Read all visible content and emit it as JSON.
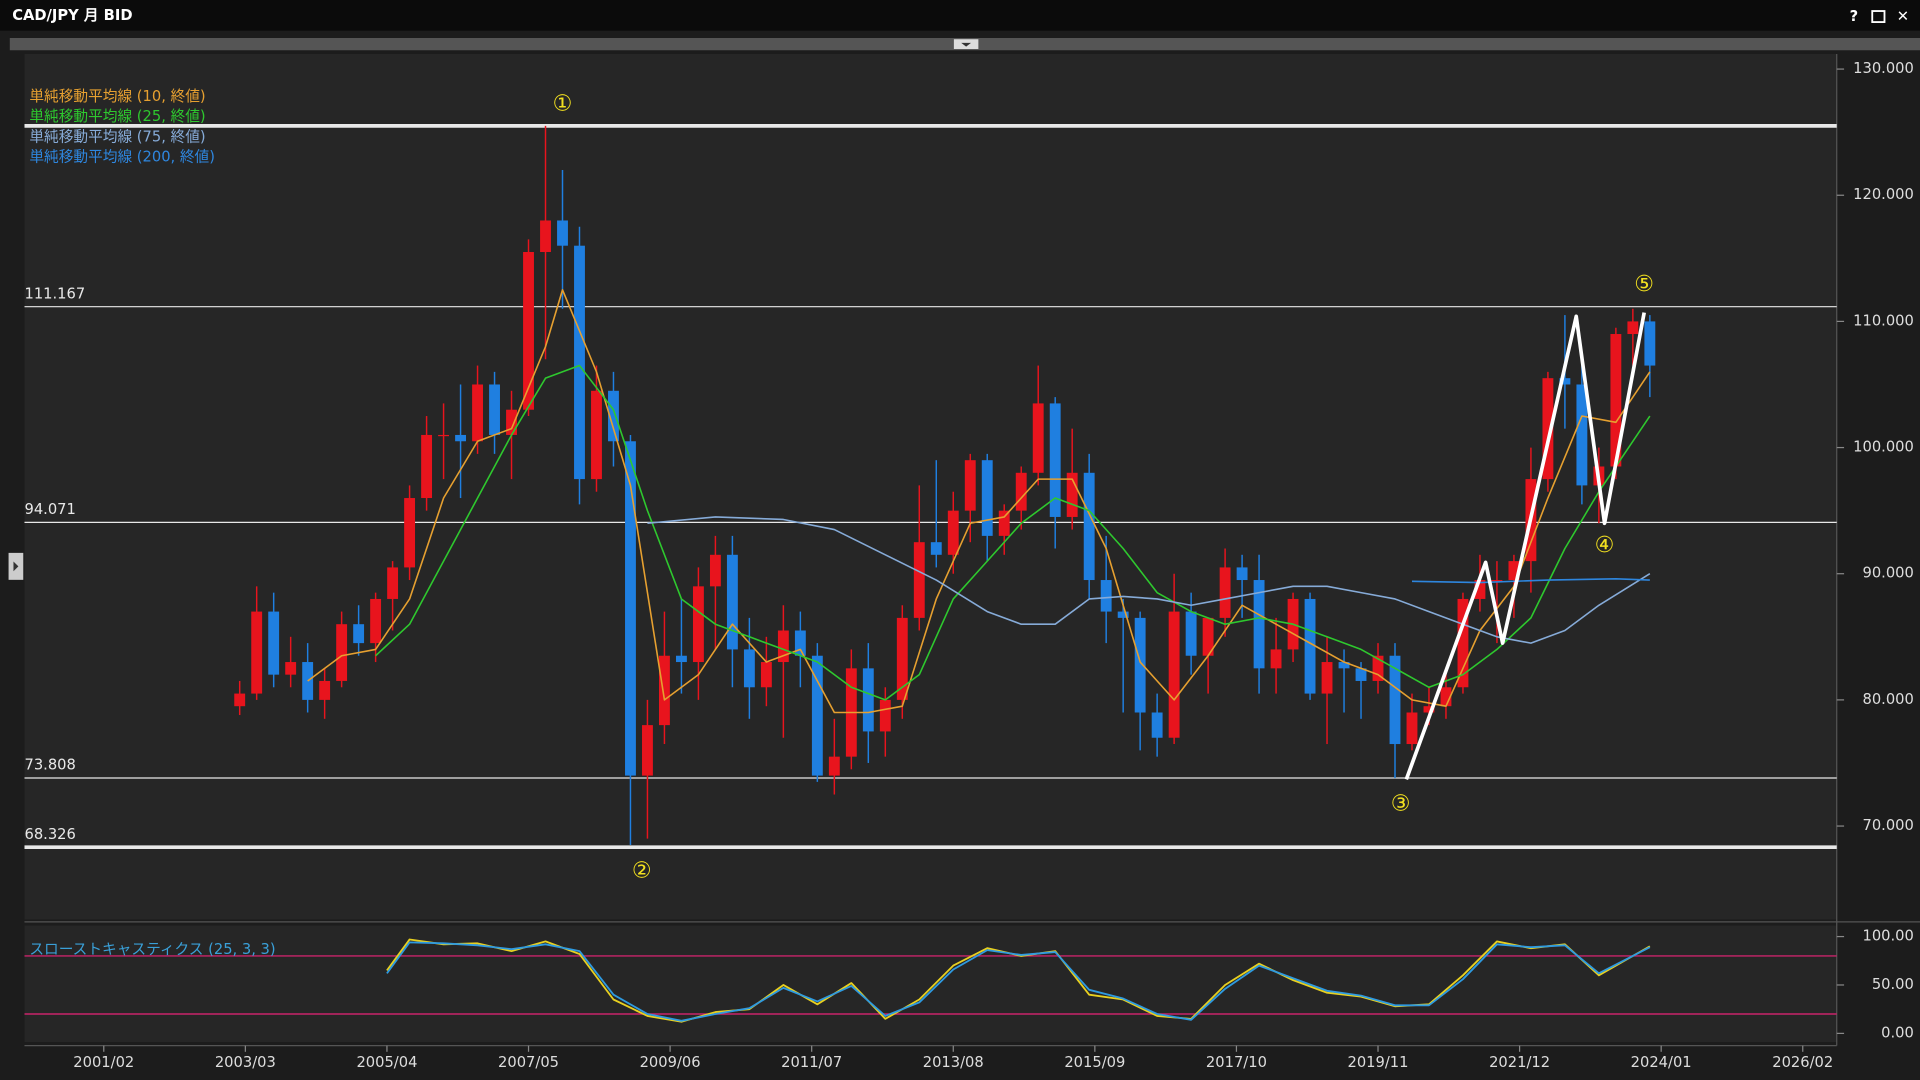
{
  "chart_data": [
    {
      "type": "candlestick",
      "title": "CAD/JPY 月 BID",
      "window_buttons": [
        "?",
        "✕"
      ],
      "up_color": "#e8141d",
      "down_color": "#1f7fe0",
      "x": [
        "2003/02",
        "2003/05",
        "2003/08",
        "2003/11",
        "2004/02",
        "2004/05",
        "2004/08",
        "2004/11",
        "2005/02",
        "2005/05",
        "2005/08",
        "2005/11",
        "2006/02",
        "2006/05",
        "2006/08",
        "2006/11",
        "2007/02",
        "2007/05",
        "2007/08",
        "2007/11",
        "2008/02",
        "2008/05",
        "2008/08",
        "2008/11",
        "2009/02",
        "2009/05",
        "2009/08",
        "2009/11",
        "2010/02",
        "2010/05",
        "2010/08",
        "2010/11",
        "2011/02",
        "2011/05",
        "2011/08",
        "2011/11",
        "2012/02",
        "2012/05",
        "2012/08",
        "2012/11",
        "2013/02",
        "2013/05",
        "2013/08",
        "2013/11",
        "2014/02",
        "2014/05",
        "2014/08",
        "2014/11",
        "2015/02",
        "2015/05",
        "2015/08",
        "2015/11",
        "2016/02",
        "2016/05",
        "2016/08",
        "2016/11",
        "2017/02",
        "2017/05",
        "2017/08",
        "2017/11",
        "2018/02",
        "2018/05",
        "2018/08",
        "2018/11",
        "2019/02",
        "2019/05",
        "2019/08",
        "2019/11",
        "2020/02",
        "2020/05",
        "2020/08",
        "2020/11",
        "2021/02",
        "2021/05",
        "2021/08",
        "2021/11",
        "2022/02",
        "2022/05",
        "2022/08",
        "2022/11",
        "2023/02",
        "2023/05",
        "2023/08",
        "2023/11"
      ],
      "open": [
        79.5,
        80.5,
        87.0,
        82.0,
        83.0,
        80.0,
        81.5,
        86.0,
        84.5,
        88.0,
        90.5,
        96.0,
        101.0,
        101.0,
        100.5,
        105.0,
        101.0,
        103.0,
        115.5,
        118.0,
        116.0,
        97.5,
        104.5,
        100.5,
        74.0,
        78.0,
        83.5,
        83.0,
        89.0,
        91.5,
        84.0,
        81.0,
        83.0,
        85.5,
        83.5,
        74.0,
        75.5,
        82.5,
        77.5,
        80.0,
        86.5,
        92.5,
        91.5,
        95.0,
        99.0,
        93.0,
        95.0,
        98.0,
        103.5,
        94.5,
        98.0,
        89.5,
        87.0,
        86.5,
        79.0,
        77.0,
        87.0,
        83.5,
        86.5,
        90.5,
        89.5,
        82.5,
        84.0,
        88.0,
        80.5,
        83.0,
        82.5,
        81.5,
        83.5,
        76.5,
        79.0,
        79.5,
        81.0,
        88.0,
        89.5,
        89.5,
        91.0,
        97.5,
        105.5,
        105.0,
        97.0,
        98.5,
        109.0,
        110.0
      ],
      "high": [
        81.5,
        89.0,
        88.5,
        85.0,
        84.5,
        82.5,
        87.0,
        87.5,
        88.5,
        91.0,
        97.0,
        102.5,
        103.5,
        105.0,
        106.5,
        106.0,
        104.5,
        116.5,
        125.5,
        122.0,
        117.5,
        106.5,
        106.0,
        101.0,
        80.0,
        87.0,
        88.0,
        90.5,
        93.0,
        93.0,
        86.5,
        85.0,
        87.5,
        87.0,
        84.5,
        78.5,
        84.0,
        84.5,
        81.0,
        87.5,
        97.0,
        99.0,
        96.5,
        99.5,
        99.5,
        95.5,
        98.5,
        106.5,
        104.0,
        101.5,
        99.5,
        93.0,
        88.0,
        87.0,
        80.5,
        90.0,
        88.5,
        86.5,
        92.0,
        91.5,
        91.5,
        86.5,
        88.5,
        88.5,
        85.0,
        84.0,
        83.0,
        84.5,
        84.5,
        80.5,
        81.0,
        82.5,
        88.5,
        91.5,
        91.0,
        91.5,
        100.0,
        106.0,
        110.5,
        106.5,
        100.0,
        109.5,
        111.0,
        110.5
      ],
      "low": [
        78.8,
        80.0,
        81.0,
        81.0,
        79.0,
        78.5,
        81.0,
        83.5,
        83.0,
        85.5,
        89.5,
        95.0,
        97.5,
        96.0,
        99.5,
        99.5,
        97.5,
        102.5,
        107.0,
        111.0,
        95.5,
        96.5,
        98.5,
        68.5,
        69.0,
        76.5,
        80.5,
        80.0,
        84.0,
        81.0,
        78.5,
        79.5,
        77.0,
        81.0,
        73.5,
        72.5,
        74.5,
        75.0,
        75.5,
        78.5,
        85.5,
        90.5,
        90.0,
        92.5,
        91.0,
        91.5,
        93.5,
        97.0,
        92.0,
        93.5,
        88.0,
        84.5,
        79.0,
        76.0,
        75.5,
        76.5,
        82.0,
        80.5,
        85.0,
        86.5,
        80.5,
        80.5,
        83.0,
        80.0,
        76.5,
        79.0,
        78.5,
        80.5,
        73.8,
        76.0,
        78.0,
        78.5,
        80.5,
        87.0,
        84.5,
        86.5,
        88.5,
        96.5,
        101.5,
        95.5,
        94.0,
        97.5,
        106.5,
        104.0
      ],
      "close": [
        80.5,
        87.0,
        82.0,
        83.0,
        80.0,
        81.5,
        86.0,
        84.5,
        88.0,
        90.5,
        96.0,
        101.0,
        101.0,
        100.5,
        105.0,
        101.0,
        103.0,
        115.5,
        118.0,
        116.0,
        97.5,
        104.5,
        100.5,
        74.0,
        78.0,
        83.5,
        83.0,
        89.0,
        91.5,
        84.0,
        81.0,
        83.0,
        85.5,
        83.5,
        74.0,
        75.5,
        82.5,
        77.5,
        80.0,
        86.5,
        92.5,
        91.5,
        95.0,
        99.0,
        93.0,
        95.0,
        98.0,
        103.5,
        94.5,
        98.0,
        89.5,
        87.0,
        86.5,
        79.0,
        77.0,
        87.0,
        83.5,
        86.5,
        90.5,
        89.5,
        82.5,
        84.0,
        88.0,
        80.5,
        83.0,
        82.5,
        81.5,
        83.5,
        76.5,
        79.0,
        79.5,
        81.0,
        88.0,
        89.5,
        89.5,
        91.0,
        97.5,
        105.5,
        105.0,
        97.0,
        98.5,
        109.0,
        110.0,
        106.5
      ],
      "overlays": [
        {
          "name": "単純移動平均線 (10, 終値)",
          "color": "#e6a030",
          "x": [
            "2004/02",
            "2004/08",
            "2005/02",
            "2005/08",
            "2006/02",
            "2006/08",
            "2007/02",
            "2007/08",
            "2007/11",
            "2008/05",
            "2008/11",
            "2009/05",
            "2009/11",
            "2010/05",
            "2010/11",
            "2011/05",
            "2011/11",
            "2012/05",
            "2012/11",
            "2013/05",
            "2013/11",
            "2014/05",
            "2014/11",
            "2015/05",
            "2015/11",
            "2016/05",
            "2016/11",
            "2017/05",
            "2017/11",
            "2018/05",
            "2018/11",
            "2019/05",
            "2019/11",
            "2020/05",
            "2020/11",
            "2021/05",
            "2021/11",
            "2022/05",
            "2022/11",
            "2023/05",
            "2023/11"
          ],
          "values": [
            81.5,
            83.5,
            84,
            88,
            96,
            100.5,
            101.5,
            108,
            112.5,
            106,
            97,
            80,
            82,
            86,
            83,
            84,
            79,
            79,
            79.5,
            88,
            94,
            94.5,
            97.5,
            97.5,
            92,
            83,
            80,
            83.5,
            87.5,
            86,
            84.5,
            83,
            82,
            80,
            79.5,
            85.5,
            89,
            96,
            102.5,
            102,
            106
          ]
        },
        {
          "name": "単純移動平均線 (25, 終値)",
          "color": "#2ec82e",
          "x": [
            "2005/02",
            "2005/08",
            "2006/02",
            "2006/08",
            "2007/02",
            "2007/08",
            "2008/02",
            "2008/08",
            "2009/02",
            "2009/08",
            "2010/02",
            "2010/08",
            "2011/02",
            "2011/08",
            "2012/02",
            "2012/08",
            "2013/02",
            "2013/08",
            "2014/02",
            "2014/08",
            "2015/02",
            "2015/08",
            "2016/02",
            "2016/08",
            "2017/02",
            "2017/08",
            "2018/02",
            "2018/08",
            "2019/02",
            "2019/08",
            "2020/02",
            "2020/08",
            "2021/02",
            "2021/08",
            "2022/02",
            "2022/08",
            "2023/02",
            "2023/11"
          ],
          "values": [
            83.5,
            86,
            91,
            96,
            101,
            105.5,
            106.5,
            103,
            95,
            88,
            86,
            85,
            84,
            83,
            81,
            80,
            82,
            88,
            91,
            94,
            96,
            95,
            92,
            88.5,
            87,
            86,
            86.5,
            86,
            85,
            84,
            82.5,
            81,
            82,
            84,
            86.5,
            92,
            96.5,
            102.5
          ]
        },
        {
          "name": "単純移動平均線 (75, 終値)",
          "color": "#86abd8",
          "x": [
            "2009/02",
            "2010/02",
            "2011/02",
            "2011/11",
            "2012/08",
            "2013/05",
            "2014/02",
            "2014/08",
            "2015/02",
            "2015/08",
            "2016/02",
            "2016/08",
            "2017/02",
            "2017/08",
            "2018/02",
            "2018/08",
            "2019/02",
            "2019/08",
            "2020/02",
            "2020/08",
            "2021/02",
            "2021/08",
            "2022/02",
            "2022/08",
            "2023/02",
            "2023/11"
          ],
          "values": [
            94,
            94.5,
            94.3,
            93.5,
            91.5,
            89.5,
            87,
            86,
            86,
            88,
            88.2,
            88,
            87.5,
            88,
            88.5,
            89,
            89,
            88.5,
            88,
            87,
            86,
            85,
            84.5,
            85.5,
            87.5,
            90
          ]
        },
        {
          "name": "単純移動平均線 (200, 終値)",
          "color": "#2e86de",
          "x": [
            "2020/05",
            "2021/05",
            "2022/05",
            "2023/05",
            "2023/11"
          ],
          "values": [
            89.4,
            89.3,
            89.5,
            89.6,
            89.5
          ]
        }
      ],
      "levels": [
        {
          "value": 125.5,
          "label": null,
          "line_width": 3
        },
        {
          "value": 111.167,
          "label": "111.167",
          "line_width": 1
        },
        {
          "value": 94.071,
          "label": "94.071",
          "line_width": 1
        },
        {
          "value": 73.808,
          "label": "73.808",
          "line_width": 1
        },
        {
          "value": 68.326,
          "label": "68.326",
          "line_width": 3
        }
      ],
      "wave": {
        "color": "#ffffff",
        "x": [
          "2020/04",
          "2021/06",
          "2021/09",
          "2022/10",
          "2023/03",
          "2023/10"
        ],
        "values": [
          73.7,
          90.9,
          84.5,
          110.4,
          94.0,
          110.7
        ]
      },
      "annotations": [
        {
          "text": "①",
          "x": "2007/11",
          "y": 127.2
        },
        {
          "text": "②",
          "x": "2009/01",
          "y": 66.4
        },
        {
          "text": "③",
          "x": "2020/03",
          "y": 71.7
        },
        {
          "text": "④",
          "x": "2023/03",
          "y": 92.2
        },
        {
          "text": "⑤",
          "x": "2023/10",
          "y": 112.9
        }
      ],
      "xlim": [
        "1999/12",
        "2026/08"
      ],
      "xticks": [
        "2001/02",
        "2003/03",
        "2005/04",
        "2007/05",
        "2009/06",
        "2011/07",
        "2013/08",
        "2015/09",
        "2017/10",
        "2019/11",
        "2021/12",
        "2024/01",
        "2026/02"
      ],
      "ylim": [
        62.6,
        131.2
      ],
      "yticks": [
        {
          "value": 70,
          "label": "70.000"
        },
        {
          "value": 80,
          "label": "80.000"
        },
        {
          "value": 90,
          "label": "90.000"
        },
        {
          "value": 100,
          "label": "100.000"
        },
        {
          "value": 110,
          "label": "110.000"
        },
        {
          "value": 120,
          "label": "120.000"
        },
        {
          "value": 130,
          "label": "130.000"
        }
      ]
    },
    {
      "type": "line",
      "title": "スローストキャスティクス (25, 3, 3)",
      "title_color": "#3aa0d8",
      "x": [
        "2005/04",
        "2005/08",
        "2006/02",
        "2006/08",
        "2007/02",
        "2007/08",
        "2008/02",
        "2008/08",
        "2009/02",
        "2009/08",
        "2010/02",
        "2010/08",
        "2011/02",
        "2011/08",
        "2012/02",
        "2012/08",
        "2013/02",
        "2013/08",
        "2014/02",
        "2014/08",
        "2015/02",
        "2015/08",
        "2016/02",
        "2016/08",
        "2017/02",
        "2017/08",
        "2018/02",
        "2018/08",
        "2019/02",
        "2019/08",
        "2020/02",
        "2020/08",
        "2021/02",
        "2021/08",
        "2022/02",
        "2022/08",
        "2023/02",
        "2023/11"
      ],
      "series": [
        {
          "color": "#e8d020",
          "values": [
            65,
            97,
            92,
            93,
            85,
            95,
            82,
            35,
            18,
            12,
            22,
            25,
            50,
            30,
            52,
            15,
            35,
            70,
            88,
            80,
            85,
            40,
            35,
            18,
            15,
            50,
            72,
            55,
            42,
            38,
            28,
            30,
            60,
            95,
            88,
            92,
            60,
            90
          ]
        },
        {
          "color": "#2e9ae0",
          "values": [
            62,
            94,
            93,
            91,
            87,
            92,
            85,
            40,
            20,
            13,
            20,
            26,
            47,
            33,
            49,
            18,
            32,
            66,
            86,
            81,
            84,
            45,
            36,
            20,
            14,
            46,
            70,
            57,
            44,
            39,
            29,
            29,
            56,
            92,
            89,
            91,
            62,
            89
          ]
        }
      ],
      "reference_lines": [
        80,
        20
      ],
      "reference_color": "#c8246a",
      "ylim": [
        -8.9,
        111.4
      ],
      "yticks": [
        {
          "value": 0,
          "label": "0.00"
        },
        {
          "value": 50,
          "label": "50.00"
        },
        {
          "value": 100,
          "label": "100.00"
        }
      ]
    }
  ]
}
